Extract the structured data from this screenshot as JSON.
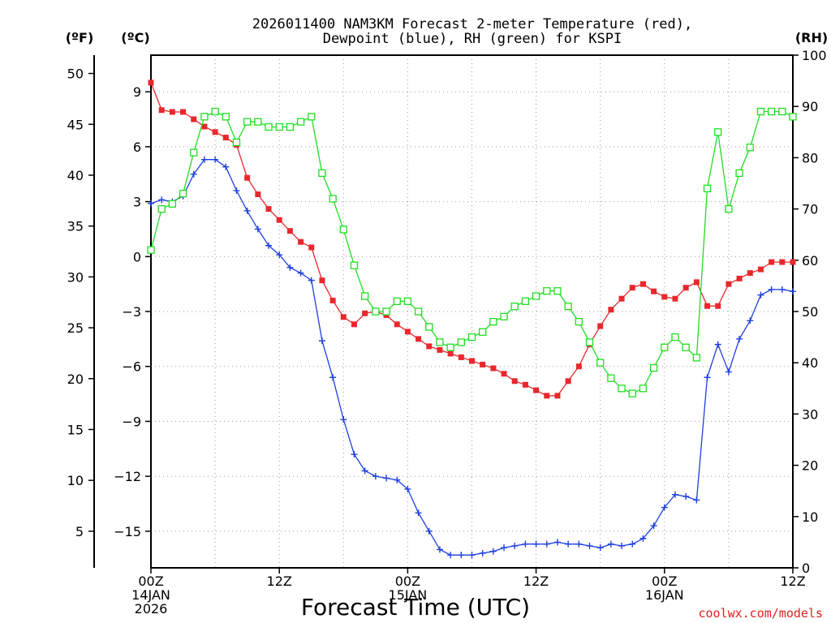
{
  "chart_data": {
    "type": "line",
    "title": [
      "2026011400 NAM3KM Forecast 2-meter Temperature (red),",
      "Dewpoint (blue), RH (green) for KSPI"
    ],
    "xlabel": "Forecast Time (UTC)",
    "credit": "coolwx.com/models",
    "axis_units": {
      "left_outer": "(ºF)",
      "left_inner": "(ºC)",
      "right": "(RH)"
    },
    "x_range_hours": [
      0,
      60
    ],
    "x_ticks": [
      {
        "hour": 0,
        "lines": [
          "00Z",
          "14JAN",
          "2026"
        ]
      },
      {
        "hour": 12,
        "lines": [
          "12Z"
        ]
      },
      {
        "hour": 24,
        "lines": [
          "00Z",
          "15JAN"
        ]
      },
      {
        "hour": 36,
        "lines": [
          "12Z"
        ]
      },
      {
        "hour": 48,
        "lines": [
          "00Z",
          "16JAN"
        ]
      },
      {
        "hour": 60,
        "lines": [
          "12Z"
        ]
      }
    ],
    "celsius_axis": {
      "range": [
        -17,
        11
      ],
      "ticks": [
        9,
        6,
        3,
        0,
        -3,
        -6,
        -9,
        -12,
        -15
      ],
      "tick_labels": [
        "9",
        "6",
        "3",
        "0",
        "−3",
        "−6",
        "−9",
        "−12",
        "−15"
      ]
    },
    "fahrenheit_axis": {
      "ticks": [
        50,
        45,
        40,
        35,
        30,
        25,
        20,
        15,
        10,
        5
      ]
    },
    "rh_axis": {
      "range": [
        0,
        100
      ],
      "ticks": [
        0,
        10,
        20,
        30,
        40,
        50,
        60,
        70,
        80,
        90,
        100
      ]
    },
    "series": [
      {
        "name": "Temperature",
        "unit": "C",
        "color": "#e8282d",
        "marker": "filled-square",
        "values": [
          9.5,
          8.0,
          7.9,
          7.9,
          7.5,
          7.1,
          6.8,
          6.5,
          6.1,
          4.3,
          3.4,
          2.6,
          2.0,
          1.4,
          0.8,
          0.5,
          -1.3,
          -2.4,
          -3.3,
          -3.7,
          -3.1,
          -3.0,
          -3.2,
          -3.7,
          -4.1,
          -4.5,
          -4.9,
          -5.1,
          -5.3,
          -5.5,
          -5.7,
          -5.9,
          -6.1,
          -6.4,
          -6.8,
          -7.0,
          -7.3,
          -7.6,
          -7.6,
          -6.8,
          -6.0,
          -4.8,
          -3.8,
          -2.9,
          -2.3,
          -1.7,
          -1.5,
          -1.9,
          -2.2,
          -2.3,
          -1.7,
          -1.4,
          -2.7,
          -2.7,
          -1.5,
          -1.2,
          -0.9,
          -0.7,
          -0.3,
          -0.3,
          -0.3
        ]
      },
      {
        "name": "Dewpoint",
        "unit": "C",
        "color": "#1f3fe0",
        "marker": "plus",
        "values": [
          2.9,
          3.1,
          3.0,
          3.3,
          4.5,
          5.3,
          5.3,
          4.9,
          3.6,
          2.5,
          1.5,
          0.6,
          0.1,
          -0.6,
          -0.9,
          -1.3,
          -4.6,
          -6.6,
          -8.9,
          -10.8,
          -11.7,
          -12.0,
          -12.1,
          -12.2,
          -12.7,
          -14.0,
          -15.0,
          -16.0,
          -16.3,
          -16.3,
          -16.3,
          -16.2,
          -16.1,
          -15.9,
          -15.8,
          -15.7,
          -15.7,
          -15.7,
          -15.6,
          -15.7,
          -15.7,
          -15.8,
          -15.9,
          -15.7,
          -15.8,
          -15.7,
          -15.4,
          -14.7,
          -13.7,
          -13.0,
          -13.1,
          -13.3,
          -6.6,
          -4.8,
          -6.3,
          -4.5,
          -3.5,
          -2.1,
          -1.8,
          -1.8,
          -1.9
        ]
      },
      {
        "name": "RH",
        "unit": "%",
        "color": "#22dd22",
        "marker": "open-square",
        "values": [
          62,
          70,
          71,
          73,
          81,
          88,
          89,
          88,
          83,
          87,
          87,
          86,
          86,
          86,
          87,
          88,
          77,
          72,
          66,
          59,
          53,
          50,
          50,
          52,
          52,
          50,
          47,
          44,
          43,
          44,
          45,
          46,
          48,
          49,
          51,
          52,
          53,
          54,
          54,
          51,
          48,
          44,
          40,
          37,
          35,
          34,
          35,
          39,
          43,
          45,
          43,
          41,
          74,
          85,
          70,
          77,
          82,
          89,
          89,
          89,
          88
        ]
      }
    ]
  }
}
